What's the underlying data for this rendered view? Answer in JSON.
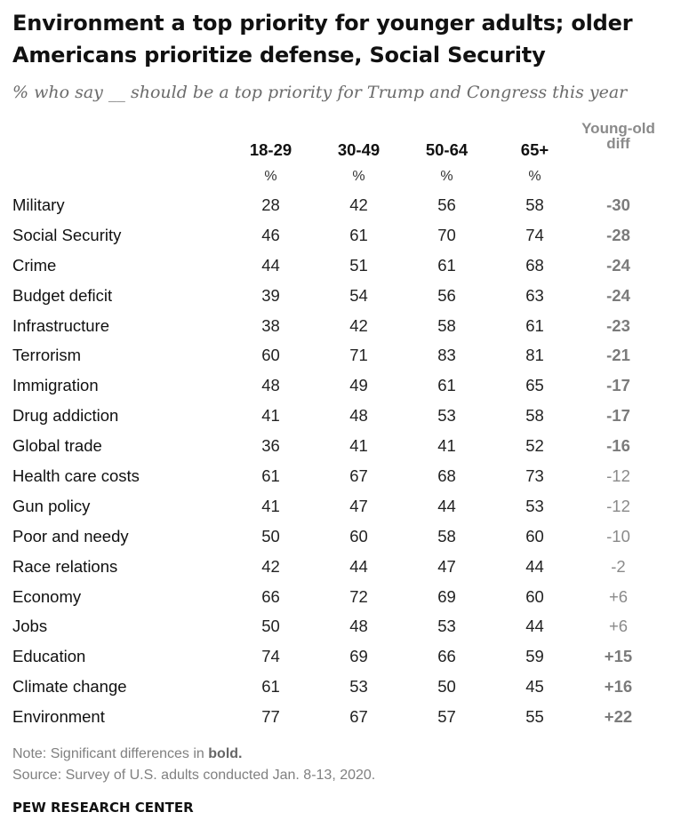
{
  "title": "Environment a top priority for younger adults; older Americans prioritize defense, Social Security",
  "subtitle": "% who say __ should be a top priority for Trump and Congress this year",
  "chart_data": {
    "type": "table",
    "columns": [
      "18-29",
      "30-49",
      "50-64",
      "65+",
      "Young-old diff"
    ],
    "unit_label": "%",
    "rows": [
      {
        "label": "Military",
        "values": [
          28,
          42,
          56,
          58
        ],
        "diff": "-30",
        "significant": true
      },
      {
        "label": "Social Security",
        "values": [
          46,
          61,
          70,
          74
        ],
        "diff": "-28",
        "significant": true
      },
      {
        "label": "Crime",
        "values": [
          44,
          51,
          61,
          68
        ],
        "diff": "-24",
        "significant": true
      },
      {
        "label": "Budget deficit",
        "values": [
          39,
          54,
          56,
          63
        ],
        "diff": "-24",
        "significant": true
      },
      {
        "label": "Infrastructure",
        "values": [
          38,
          42,
          58,
          61
        ],
        "diff": "-23",
        "significant": true
      },
      {
        "label": "Terrorism",
        "values": [
          60,
          71,
          83,
          81
        ],
        "diff": "-21",
        "significant": true
      },
      {
        "label": "Immigration",
        "values": [
          48,
          49,
          61,
          65
        ],
        "diff": "-17",
        "significant": true
      },
      {
        "label": "Drug addiction",
        "values": [
          41,
          48,
          53,
          58
        ],
        "diff": "-17",
        "significant": true
      },
      {
        "label": "Global trade",
        "values": [
          36,
          41,
          41,
          52
        ],
        "diff": "-16",
        "significant": true
      },
      {
        "label": "Health care costs",
        "values": [
          61,
          67,
          68,
          73
        ],
        "diff": "-12",
        "significant": false
      },
      {
        "label": "Gun policy",
        "values": [
          41,
          47,
          44,
          53
        ],
        "diff": "-12",
        "significant": false
      },
      {
        "label": "Poor and needy",
        "values": [
          50,
          60,
          58,
          60
        ],
        "diff": "-10",
        "significant": false
      },
      {
        "label": "Race relations",
        "values": [
          42,
          44,
          47,
          44
        ],
        "diff": "-2",
        "significant": false
      },
      {
        "label": "Economy",
        "values": [
          66,
          72,
          69,
          60
        ],
        "diff": "+6",
        "significant": false
      },
      {
        "label": "Jobs",
        "values": [
          50,
          48,
          53,
          44
        ],
        "diff": "+6",
        "significant": false
      },
      {
        "label": "Education",
        "values": [
          74,
          69,
          66,
          59
        ],
        "diff": "+15",
        "significant": true
      },
      {
        "label": "Climate change",
        "values": [
          61,
          53,
          50,
          45
        ],
        "diff": "+16",
        "significant": true
      },
      {
        "label": "Environment",
        "values": [
          77,
          67,
          57,
          55
        ],
        "diff": "+22",
        "significant": true
      }
    ]
  },
  "footer": {
    "note_prefix": "Note: Significant differences in ",
    "note_bold": "bold.",
    "source": "Source: Survey of U.S. adults conducted Jan. 8-13, 2020.",
    "brand": "PEW RESEARCH CENTER"
  },
  "colors": {
    "text": "#111111",
    "muted": "#808080",
    "diff": "#8a8a8a"
  }
}
